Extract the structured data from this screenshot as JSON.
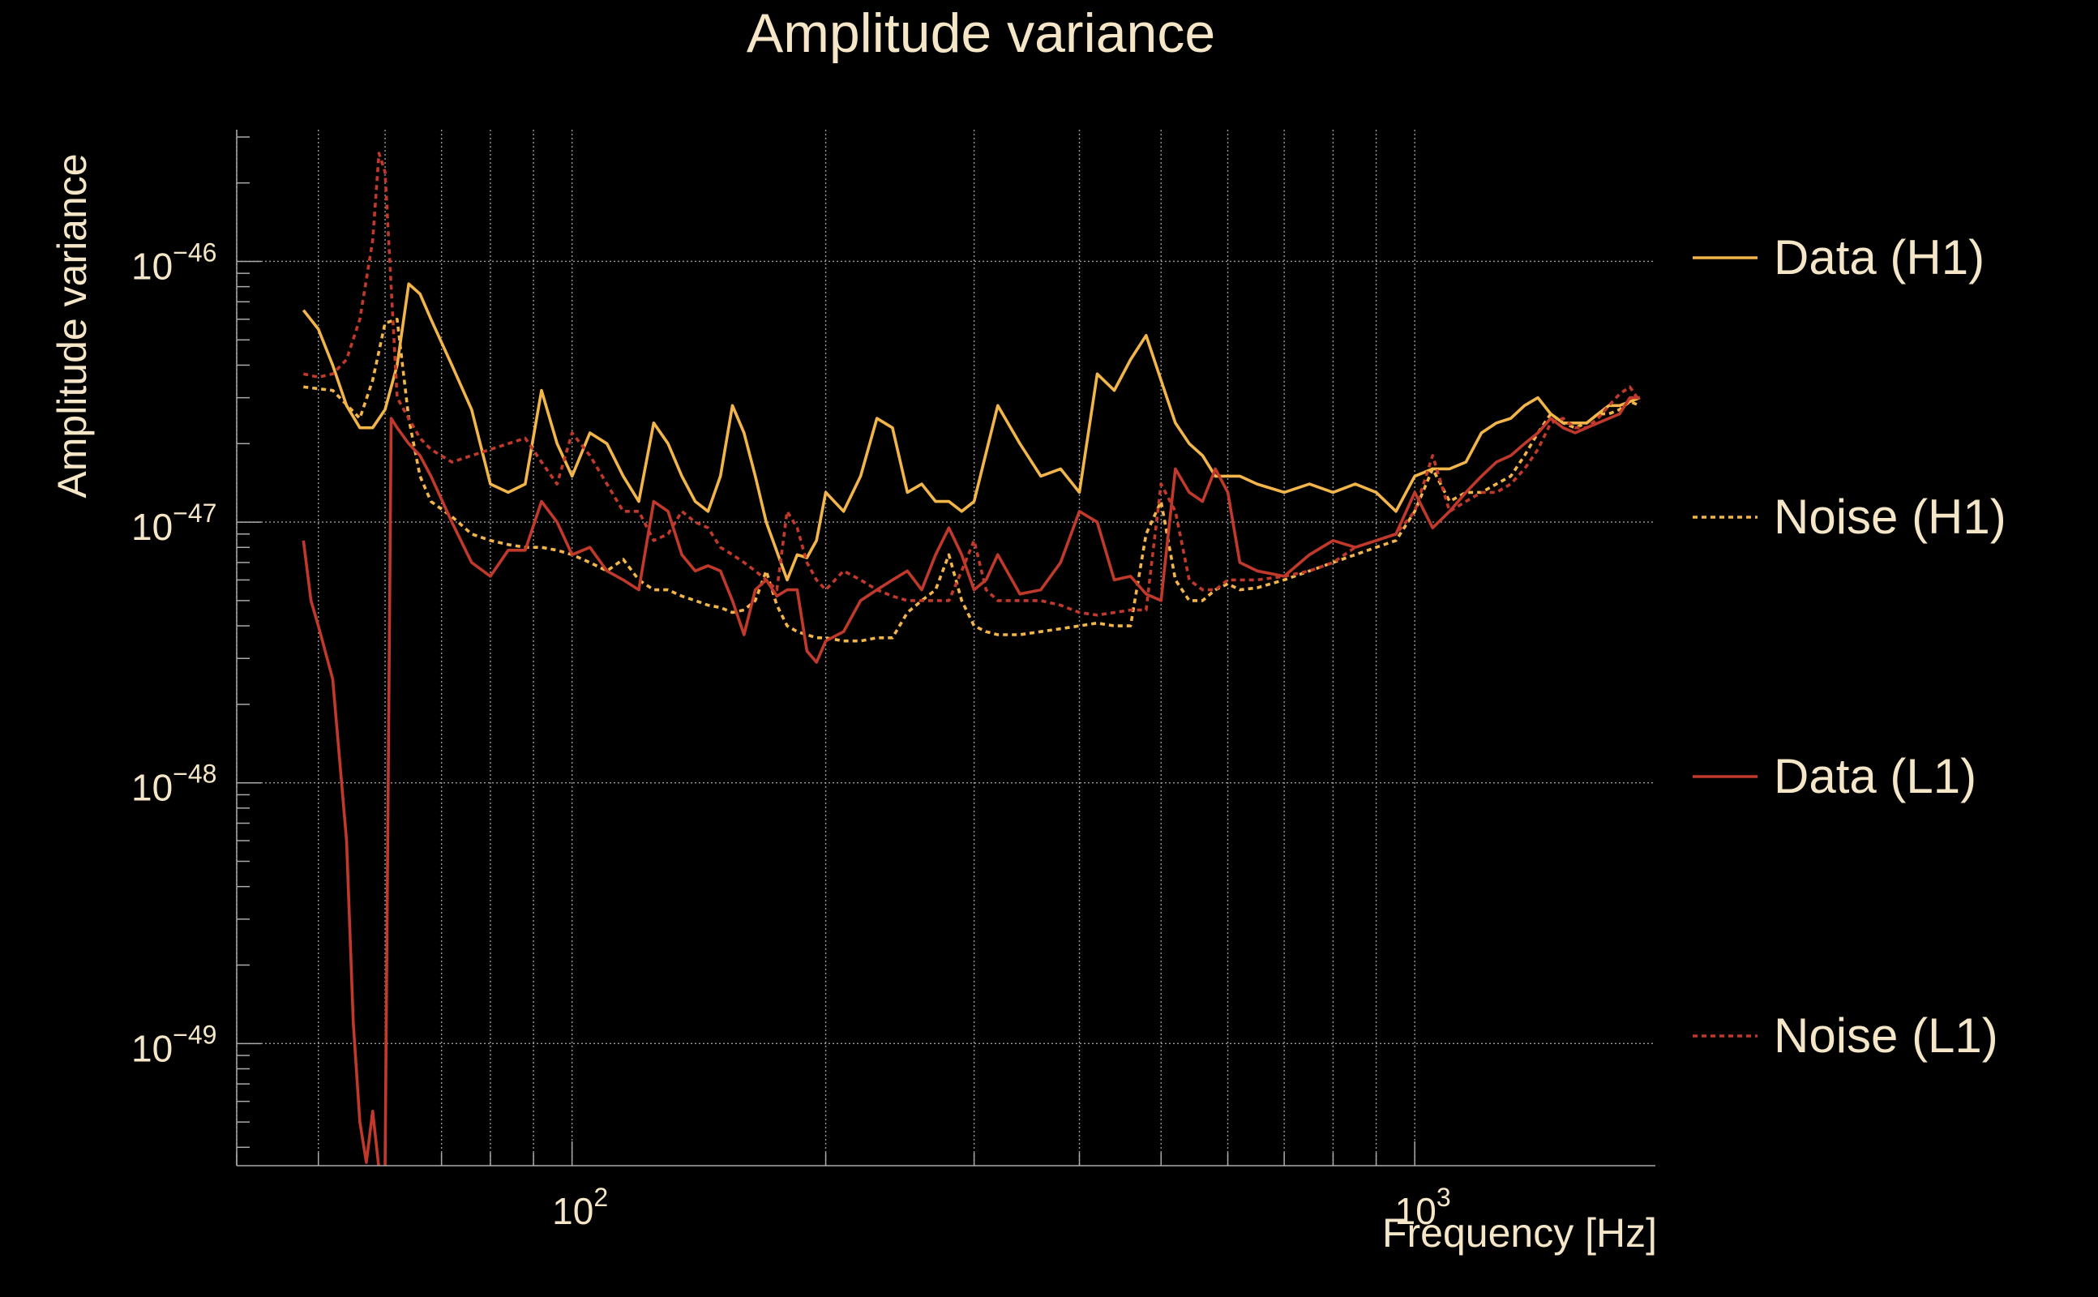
{
  "chart_data": {
    "type": "line",
    "title": "Amplitude variance",
    "xlabel": "Frequency [Hz]",
    "ylabel": "Amplitude variance",
    "x_scale": "log",
    "y_scale": "log",
    "xlim": [
      40,
      1930
    ],
    "ylim": [
      3.4e-50,
      3.2e-46
    ],
    "x_major_ticks": [
      {
        "value": 100,
        "base": "10",
        "exp": "2"
      },
      {
        "value": 1000,
        "base": "10",
        "exp": "3"
      }
    ],
    "y_major_ticks": [
      {
        "value": 1e-49,
        "base": "10",
        "exp": "−49"
      },
      {
        "value": 1e-48,
        "base": "10",
        "exp": "−48"
      },
      {
        "value": 1e-47,
        "base": "10",
        "exp": "−47"
      },
      {
        "value": 1e-46,
        "base": "10",
        "exp": "−46"
      }
    ],
    "grid": true,
    "legend_position": "right",
    "series": [
      {
        "name": "Data (H1)",
        "color": "#f2b54a",
        "dash": "solid",
        "x": [
          48,
          50,
          52,
          54,
          56,
          58,
          60,
          62,
          64,
          66,
          68,
          72,
          76,
          80,
          84,
          88,
          92,
          96,
          100,
          105,
          110,
          115,
          120,
          125,
          130,
          135,
          140,
          145,
          150,
          155,
          160,
          165,
          170,
          180,
          185,
          190,
          195,
          200,
          210,
          220,
          230,
          240,
          250,
          260,
          270,
          280,
          290,
          300,
          320,
          340,
          360,
          380,
          400,
          420,
          440,
          460,
          480,
          500,
          520,
          540,
          560,
          580,
          600,
          620,
          650,
          700,
          750,
          800,
          850,
          900,
          950,
          1000,
          1050,
          1100,
          1150,
          1200,
          1250,
          1300,
          1350,
          1400,
          1450,
          1500,
          1550,
          1600,
          1650,
          1700,
          1750,
          1800,
          1850
        ],
        "y": [
          6.5e-47,
          5.5e-47,
          4e-47,
          2.8e-47,
          2.3e-47,
          2.3e-47,
          2.7e-47,
          4e-47,
          8.2e-47,
          7.5e-47,
          6e-47,
          4e-47,
          2.7e-47,
          1.4e-47,
          1.3e-47,
          1.4e-47,
          3.2e-47,
          2e-47,
          1.5e-47,
          2.2e-47,
          2e-47,
          1.5e-47,
          1.2e-47,
          2.4e-47,
          2e-47,
          1.5e-47,
          1.2e-47,
          1.1e-47,
          1.5e-47,
          2.8e-47,
          2.2e-47,
          1.5e-47,
          1e-47,
          6e-48,
          7.5e-48,
          7.3e-48,
          8.5e-48,
          1.3e-47,
          1.1e-47,
          1.5e-47,
          2.5e-47,
          2.3e-47,
          1.3e-47,
          1.4e-47,
          1.2e-47,
          1.2e-47,
          1.1e-47,
          1.2e-47,
          2.8e-47,
          2e-47,
          1.5e-47,
          1.6e-47,
          1.3e-47,
          3.7e-47,
          3.2e-47,
          4.2e-47,
          5.2e-47,
          3.5e-47,
          2.4e-47,
          2e-47,
          1.8e-47,
          1.5e-47,
          1.5e-47,
          1.5e-47,
          1.4e-47,
          1.3e-47,
          1.4e-47,
          1.3e-47,
          1.4e-47,
          1.3e-47,
          1.1e-47,
          1.5e-47,
          1.6e-47,
          1.6e-47,
          1.7e-47,
          2.2e-47,
          2.4e-47,
          2.5e-47,
          2.8e-47,
          3e-47,
          2.6e-47,
          2.4e-47,
          2.4e-47,
          2.4e-47,
          2.6e-47,
          2.8e-47,
          2.8e-47,
          2.9e-47,
          3e-47
        ]
      },
      {
        "name": "Noise (H1)",
        "color": "#f2b54a",
        "dash": "dotted",
        "x": [
          48,
          52,
          56,
          58,
          60,
          62,
          64,
          66,
          68,
          72,
          76,
          80,
          84,
          88,
          92,
          96,
          100,
          105,
          110,
          115,
          120,
          125,
          130,
          135,
          140,
          145,
          150,
          155,
          160,
          165,
          170,
          175,
          180,
          185,
          190,
          195,
          200,
          210,
          220,
          230,
          240,
          250,
          260,
          270,
          280,
          290,
          300,
          310,
          320,
          340,
          360,
          380,
          400,
          420,
          440,
          460,
          480,
          500,
          520,
          540,
          560,
          580,
          600,
          620,
          650,
          700,
          750,
          800,
          850,
          900,
          950,
          1000,
          1050,
          1100,
          1150,
          1200,
          1250,
          1300,
          1350,
          1400,
          1450,
          1500,
          1550,
          1600,
          1650,
          1700,
          1750,
          1800,
          1850
        ],
        "y": [
          3.3e-47,
          3.2e-47,
          2.5e-47,
          3.5e-47,
          5.8e-47,
          6e-47,
          2.5e-47,
          1.5e-47,
          1.2e-47,
          1.05e-47,
          9e-48,
          8.5e-48,
          8.2e-48,
          8e-48,
          8e-48,
          7.8e-48,
          7.5e-48,
          7e-48,
          6.5e-48,
          7.2e-48,
          6e-48,
          5.5e-48,
          5.5e-48,
          5.2e-48,
          5e-48,
          4.8e-48,
          4.7e-48,
          4.5e-48,
          4.6e-48,
          5e-48,
          6.5e-48,
          4.8e-48,
          4e-48,
          3.8e-48,
          3.7e-48,
          3.6e-48,
          3.6e-48,
          3.5e-48,
          3.5e-48,
          3.6e-48,
          3.6e-48,
          4.5e-48,
          5e-48,
          5.5e-48,
          7.5e-48,
          5e-48,
          4e-48,
          3.8e-48,
          3.7e-48,
          3.7e-48,
          3.8e-48,
          3.9e-48,
          4e-48,
          4.1e-48,
          4e-48,
          4e-48,
          9e-48,
          1.2e-47,
          6e-48,
          5e-48,
          5e-48,
          5.5e-48,
          5.8e-48,
          5.5e-48,
          5.6e-48,
          6e-48,
          6.5e-48,
          7e-48,
          7.5e-48,
          8e-48,
          8.5e-48,
          1.1e-47,
          1.6e-47,
          1.2e-47,
          1.3e-47,
          1.3e-47,
          1.4e-47,
          1.5e-47,
          1.8e-47,
          2.2e-47,
          2.6e-47,
          2.4e-47,
          2.3e-47,
          2.4e-47,
          2.6e-47,
          2.6e-47,
          2.7e-47,
          2.9e-47,
          2.8e-47
        ]
      },
      {
        "name": "Data (L1)",
        "color": "#c0392b",
        "dash": "solid",
        "x": [
          48,
          49,
          50,
          52,
          54,
          55,
          56,
          57,
          58,
          59,
          60,
          61,
          62,
          64,
          66,
          68,
          72,
          76,
          80,
          84,
          88,
          92,
          96,
          100,
          105,
          110,
          115,
          120,
          125,
          130,
          135,
          140,
          145,
          150,
          155,
          160,
          165,
          170,
          175,
          180,
          185,
          190,
          195,
          200,
          210,
          220,
          230,
          240,
          250,
          260,
          270,
          280,
          290,
          300,
          310,
          320,
          340,
          360,
          380,
          400,
          420,
          440,
          460,
          480,
          500,
          520,
          540,
          560,
          580,
          600,
          620,
          650,
          700,
          750,
          800,
          850,
          900,
          950,
          1000,
          1050,
          1100,
          1150,
          1200,
          1250,
          1300,
          1350,
          1400,
          1450,
          1500,
          1550,
          1600,
          1650,
          1700,
          1750,
          1800,
          1850
        ],
        "y": [
          8.5e-48,
          5e-48,
          4e-48,
          2.5e-48,
          6e-49,
          1.2e-49,
          5e-50,
          3.5e-50,
          5.5e-50,
          3.3e-50,
          3.3e-50,
          2.5e-47,
          2.3e-47,
          2e-47,
          1.8e-47,
          1.5e-47,
          1e-47,
          7e-48,
          6.2e-48,
          7.8e-48,
          7.8e-48,
          1.2e-47,
          1e-47,
          7.5e-48,
          8e-48,
          6.5e-48,
          6e-48,
          5.5e-48,
          1.2e-47,
          1.1e-47,
          7.5e-48,
          6.5e-48,
          6.8e-48,
          6.5e-48,
          5e-48,
          3.7e-48,
          5.5e-48,
          6e-48,
          5.2e-48,
          5.5e-48,
          5.5e-48,
          3.2e-48,
          2.9e-48,
          3.5e-48,
          3.8e-48,
          5e-48,
          5.5e-48,
          6e-48,
          6.5e-48,
          5.5e-48,
          7.5e-48,
          9.5e-48,
          7.5e-48,
          5.5e-48,
          6e-48,
          7.5e-48,
          5.3e-48,
          5.5e-48,
          7e-48,
          1.1e-47,
          1e-47,
          6e-48,
          6.2e-48,
          5.3e-48,
          5e-48,
          1.6e-47,
          1.3e-47,
          1.2e-47,
          1.6e-47,
          1.3e-47,
          7e-48,
          6.5e-48,
          6.2e-48,
          7.5e-48,
          8.5e-48,
          8e-48,
          8.5e-48,
          9e-48,
          1.3e-47,
          9.5e-48,
          1.1e-47,
          1.3e-47,
          1.5e-47,
          1.7e-47,
          1.8e-47,
          2e-47,
          2.2e-47,
          2.5e-47,
          2.3e-47,
          2.2e-47,
          2.3e-47,
          2.4e-47,
          2.5e-47,
          2.6e-47,
          3e-47,
          3e-47
        ]
      },
      {
        "name": "Noise (L1)",
        "color": "#c0392b",
        "dash": "dotted",
        "x": [
          48,
          50,
          52,
          54,
          56,
          58,
          59,
          60,
          61,
          62,
          64,
          66,
          68,
          72,
          76,
          80,
          84,
          88,
          92,
          96,
          100,
          105,
          110,
          115,
          120,
          125,
          130,
          135,
          140,
          145,
          150,
          155,
          160,
          165,
          170,
          175,
          180,
          185,
          190,
          195,
          200,
          210,
          220,
          230,
          240,
          250,
          260,
          270,
          280,
          290,
          300,
          310,
          320,
          340,
          360,
          380,
          400,
          420,
          440,
          460,
          480,
          500,
          520,
          540,
          560,
          580,
          600,
          620,
          650,
          700,
          750,
          800,
          850,
          900,
          950,
          1000,
          1050,
          1100,
          1150,
          1200,
          1250,
          1300,
          1350,
          1400,
          1450,
          1500,
          1550,
          1600,
          1650,
          1700,
          1750,
          1800,
          1850
        ],
        "y": [
          3.7e-47,
          3.6e-47,
          3.7e-47,
          4.2e-47,
          6e-47,
          1.2e-46,
          2.6e-46,
          2.2e-46,
          8e-47,
          3e-47,
          2.5e-47,
          2.1e-47,
          1.9e-47,
          1.7e-47,
          1.8e-47,
          1.9e-47,
          2e-47,
          2.1e-47,
          1.7e-47,
          1.4e-47,
          2.2e-47,
          1.8e-47,
          1.4e-47,
          1.1e-47,
          1.1e-47,
          8.5e-48,
          9e-48,
          1.1e-47,
          1e-47,
          9.5e-48,
          8e-48,
          7.5e-48,
          7e-48,
          6.5e-48,
          6e-48,
          5.5e-48,
          1.1e-47,
          9.5e-48,
          7e-48,
          6e-48,
          5.5e-48,
          6.5e-48,
          6e-48,
          5.5e-48,
          5.2e-48,
          5e-48,
          5e-48,
          5e-48,
          5e-48,
          6.5e-48,
          8.5e-48,
          5.5e-48,
          5e-48,
          5e-48,
          5e-48,
          4.8e-48,
          4.5e-48,
          4.4e-48,
          4.5e-48,
          4.6e-48,
          4.6e-48,
          1.4e-47,
          1.1e-47,
          6e-48,
          5.5e-48,
          5.5e-48,
          6e-48,
          6e-48,
          6e-48,
          6.2e-48,
          6.5e-48,
          7e-48,
          8e-48,
          8.5e-48,
          9e-48,
          1.1e-47,
          1.8e-47,
          1.1e-47,
          1.2e-47,
          1.3e-47,
          1.3e-47,
          1.4e-47,
          1.6e-47,
          1.9e-47,
          2.4e-47,
          2.5e-47,
          2.3e-47,
          2.3e-47,
          2.5e-47,
          2.8e-47,
          3.1e-47,
          3.3e-47,
          2.9e-47
        ]
      }
    ]
  }
}
